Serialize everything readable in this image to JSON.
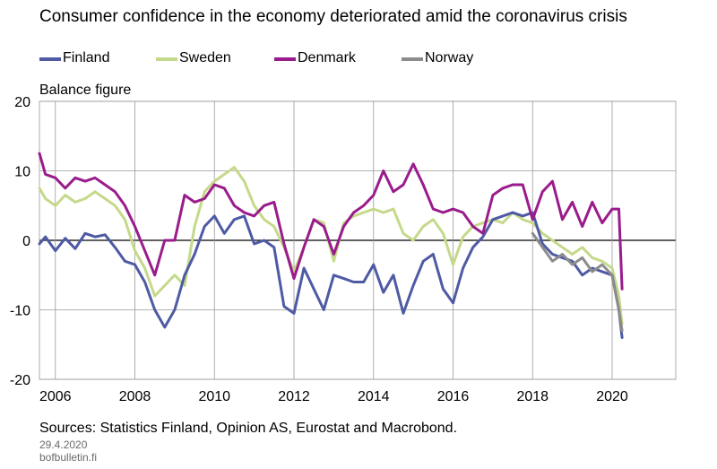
{
  "title": "Consumer confidence in the economy deteriorated amid the coronavirus crisis",
  "footer": {
    "source": "Sources: Statistics Finland, Opinion AS, Eurostat and Macrobond.",
    "date": "29.4.2020",
    "site": "bofbulletin.fi"
  },
  "colors": {
    "Finland": "#4e5aa4",
    "Sweden": "#c5d98a",
    "Denmark": "#9a1c8c",
    "Norway": "#8c8c8c"
  },
  "chart_data": {
    "type": "line",
    "title": "Consumer confidence in the economy deteriorated amid the coronavirus crisis",
    "ylabel": "Balance figure",
    "xlabel": "",
    "ylim": [
      -20,
      20
    ],
    "yticks": [
      "20",
      "10",
      "0",
      "-10",
      "-20"
    ],
    "xlim": [
      2005.6,
      2021.6
    ],
    "xticks": [
      "2006",
      "2008",
      "2010",
      "2012",
      "2014",
      "2016",
      "2018",
      "2020"
    ],
    "grid": true,
    "legend_position": "top",
    "series": [
      {
        "name": "Finland",
        "x": [
          2005.6,
          2005.75,
          2006.0,
          2006.25,
          2006.5,
          2006.75,
          2007.0,
          2007.25,
          2007.5,
          2007.75,
          2008.0,
          2008.25,
          2008.5,
          2008.75,
          2009.0,
          2009.25,
          2009.5,
          2009.75,
          2010.0,
          2010.25,
          2010.5,
          2010.75,
          2011.0,
          2011.25,
          2011.5,
          2011.75,
          2012.0,
          2012.25,
          2012.5,
          2012.75,
          2013.0,
          2013.25,
          2013.5,
          2013.75,
          2014.0,
          2014.25,
          2014.5,
          2014.75,
          2015.0,
          2015.25,
          2015.5,
          2015.75,
          2016.0,
          2016.25,
          2016.5,
          2016.75,
          2017.0,
          2017.25,
          2017.5,
          2017.75,
          2018.0,
          2018.25,
          2018.5,
          2018.75,
          2019.0,
          2019.25,
          2019.5,
          2019.75,
          2020.0,
          2020.17,
          2020.25
        ],
        "values": [
          -0.5,
          0.5,
          -1.5,
          0.3,
          -1.2,
          1.0,
          0.5,
          0.8,
          -1.0,
          -3.0,
          -3.5,
          -6.0,
          -10.0,
          -12.5,
          -10.0,
          -5.0,
          -2.0,
          2.0,
          3.5,
          1.0,
          3.0,
          3.5,
          -0.5,
          0.0,
          -1.0,
          -9.5,
          -10.5,
          -4.0,
          -7.0,
          -10.0,
          -5.0,
          -5.5,
          -6.0,
          -6.0,
          -3.5,
          -7.5,
          -5.0,
          -10.5,
          -6.5,
          -3.0,
          -2.0,
          -7.0,
          -9.0,
          -4.0,
          -1.0,
          0.5,
          3.0,
          3.5,
          4.0,
          3.5,
          4.0,
          -0.5,
          -2.0,
          -2.5,
          -3.0,
          -5.0,
          -4.0,
          -4.5,
          -5.0,
          -10.0,
          -14.0
        ]
      },
      {
        "name": "Sweden",
        "x": [
          2005.6,
          2005.75,
          2006.0,
          2006.25,
          2006.5,
          2006.75,
          2007.0,
          2007.25,
          2007.5,
          2007.75,
          2008.0,
          2008.25,
          2008.5,
          2008.75,
          2009.0,
          2009.25,
          2009.5,
          2009.75,
          2010.0,
          2010.25,
          2010.5,
          2010.75,
          2011.0,
          2011.25,
          2011.5,
          2011.75,
          2012.0,
          2012.25,
          2012.5,
          2012.75,
          2013.0,
          2013.25,
          2013.5,
          2013.75,
          2014.0,
          2014.25,
          2014.5,
          2014.75,
          2015.0,
          2015.25,
          2015.5,
          2015.75,
          2016.0,
          2016.25,
          2016.5,
          2016.75,
          2017.0,
          2017.25,
          2017.5,
          2017.75,
          2018.0,
          2018.25,
          2018.5,
          2018.75,
          2019.0,
          2019.25,
          2019.5,
          2019.75,
          2020.0,
          2020.17,
          2020.25
        ],
        "values": [
          7.5,
          6.0,
          5.0,
          6.5,
          5.5,
          6.0,
          7.0,
          6.0,
          5.0,
          3.0,
          -1.5,
          -4.0,
          -8.0,
          -6.5,
          -5.0,
          -6.5,
          2.0,
          7.0,
          8.5,
          9.5,
          10.5,
          8.5,
          5.0,
          3.0,
          2.0,
          -1.0,
          -4.5,
          -1.0,
          3.0,
          2.5,
          -3.0,
          2.5,
          3.5,
          4.0,
          4.5,
          4.0,
          4.5,
          1.0,
          0.0,
          2.0,
          3.0,
          1.0,
          -3.5,
          0.5,
          2.0,
          2.5,
          3.0,
          2.5,
          4.0,
          3.0,
          2.5,
          1.0,
          0.0,
          -1.0,
          -2.0,
          -1.0,
          -2.5,
          -3.0,
          -4.0,
          -8.0,
          -12.0
        ]
      },
      {
        "name": "Denmark",
        "x": [
          2005.6,
          2005.75,
          2006.0,
          2006.25,
          2006.5,
          2006.75,
          2007.0,
          2007.25,
          2007.5,
          2007.75,
          2008.0,
          2008.25,
          2008.5,
          2008.75,
          2009.0,
          2009.25,
          2009.5,
          2009.75,
          2010.0,
          2010.25,
          2010.5,
          2010.75,
          2011.0,
          2011.25,
          2011.5,
          2011.75,
          2012.0,
          2012.25,
          2012.5,
          2012.75,
          2013.0,
          2013.25,
          2013.5,
          2013.75,
          2014.0,
          2014.25,
          2014.5,
          2014.75,
          2015.0,
          2015.25,
          2015.5,
          2015.75,
          2016.0,
          2016.25,
          2016.5,
          2016.75,
          2017.0,
          2017.25,
          2017.5,
          2017.75,
          2018.0,
          2018.25,
          2018.5,
          2018.75,
          2019.0,
          2019.25,
          2019.5,
          2019.75,
          2020.0,
          2020.17,
          2020.25
        ],
        "values": [
          12.5,
          9.5,
          9.0,
          7.5,
          9.0,
          8.5,
          9.0,
          8.0,
          7.0,
          5.0,
          2.0,
          -1.5,
          -5.0,
          0.0,
          0.0,
          6.5,
          5.5,
          6.0,
          8.0,
          7.5,
          5.0,
          4.0,
          3.5,
          5.0,
          5.5,
          -0.5,
          -5.5,
          -1.0,
          3.0,
          2.0,
          -2.0,
          2.0,
          4.0,
          5.0,
          6.5,
          10.0,
          7.0,
          8.0,
          11.0,
          8.0,
          4.5,
          4.0,
          4.5,
          4.0,
          2.0,
          1.0,
          6.5,
          7.5,
          8.0,
          8.0,
          3.0,
          7.0,
          8.5,
          3.0,
          5.5,
          2.0,
          5.5,
          2.5,
          4.5,
          4.5,
          -7.0
        ]
      },
      {
        "name": "Norway",
        "x": [
          2018.0,
          2018.25,
          2018.5,
          2018.75,
          2019.0,
          2019.25,
          2019.5,
          2019.75,
          2020.0,
          2020.17,
          2020.25
        ],
        "values": [
          1.0,
          -1.0,
          -3.0,
          -2.0,
          -3.5,
          -2.5,
          -4.5,
          -3.5,
          -5.0,
          -10.0,
          -13.0
        ]
      }
    ]
  }
}
